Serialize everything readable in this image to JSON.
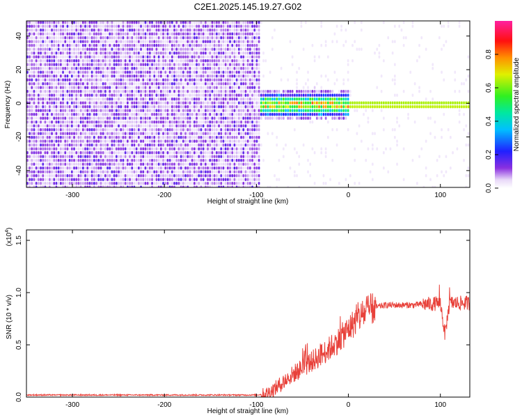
{
  "title": "C2E1.2025.145.19.27.G02",
  "chart_data": [
    {
      "type": "heatmap",
      "xlabel": "Height of straight line (km)",
      "ylabel": "Frequency (Hz)",
      "xlim": [
        -350,
        132
      ],
      "ylim": [
        -50,
        49
      ],
      "xticks": [
        -300,
        -200,
        -100,
        0,
        100
      ],
      "yticks": [
        -40,
        -20,
        0,
        20,
        40
      ],
      "colorbar": {
        "label": "Normalized spectral amplitude",
        "range": [
          0,
          1
        ],
        "ticks": [
          "0.0",
          "0.2",
          "0.4",
          "0.6",
          "0.8"
        ],
        "colormap": "rainbow (white-violet-blue-cyan-green-yellow-red-magenta)"
      },
      "regions": [
        {
          "x_range": [
            -350,
            -97
          ],
          "description_value": 0.15,
          "pattern": "broadband noise across all frequencies"
        },
        {
          "x_range": [
            -97,
            132
          ],
          "peak_frequency": 0,
          "peak_value": 0.95,
          "pattern": "narrow band centered near 0 Hz"
        }
      ]
    },
    {
      "type": "line",
      "xlabel": "Height of straight line (km)",
      "ylabel": "SNR (10 * v/v)",
      "scale_label": "(x10",
      "scale_exp": "4",
      "xlim": [
        -350,
        132
      ],
      "ylim": [
        0,
        1.6
      ],
      "xticks": [
        -300,
        -200,
        -100,
        0,
        100
      ],
      "yticks": [
        "0.0",
        "0.5",
        "1.0",
        "1.5"
      ],
      "series": [
        {
          "color": "#e8413a",
          "x": [
            -350,
            -300,
            -250,
            -200,
            -150,
            -100,
            -90,
            -80,
            -70,
            -60,
            -50,
            -40,
            -30,
            -20,
            -10,
            0,
            10,
            20,
            30,
            40,
            50,
            60,
            70,
            80,
            90,
            100,
            105,
            110,
            120,
            132
          ],
          "values": [
            0.02,
            0.02,
            0.02,
            0.02,
            0.02,
            0.02,
            0.03,
            0.08,
            0.15,
            0.22,
            0.28,
            0.34,
            0.4,
            0.47,
            0.55,
            0.65,
            0.75,
            0.82,
            0.86,
            0.88,
            0.88,
            0.88,
            0.88,
            0.89,
            0.89,
            0.9,
            0.6,
            0.9,
            0.9,
            0.9
          ]
        }
      ]
    }
  ]
}
